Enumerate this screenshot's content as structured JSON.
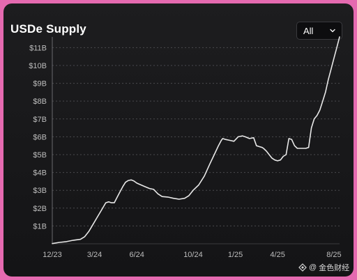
{
  "header": {
    "title": "USDe Supply",
    "range_label": "All"
  },
  "watermark": {
    "text": "金色财经"
  },
  "colors": {
    "line": "#e8e8e8",
    "grid": "#4a4a4e",
    "tick_text": "#bdbdbd",
    "background": "#161618",
    "frame": "#e56ab0"
  },
  "chart_data": {
    "type": "line",
    "title": "USDe Supply",
    "xlabel": "",
    "ylabel": "",
    "x_ticks": [
      "12/23",
      "3/24",
      "6/24",
      "10/24",
      "1/25",
      "4/25",
      "8/25"
    ],
    "x_tick_positions": [
      0,
      3,
      6,
      10,
      13,
      16,
      20
    ],
    "y_ticks": [
      "$1B",
      "$2B",
      "$3B",
      "$4B",
      "$5B",
      "$6B",
      "$7B",
      "$8B",
      "$9B",
      "$10B",
      "$11B"
    ],
    "y_tick_values": [
      1,
      2,
      3,
      4,
      5,
      6,
      7,
      8,
      9,
      10,
      11
    ],
    "ylim": [
      0,
      11.6
    ],
    "x_unit": "months since Dec 2023",
    "y_unit": "USD billions",
    "grid": "horizontal dashed",
    "series": [
      {
        "name": "USDe Supply",
        "x": [
          0,
          0.5,
          1,
          1.5,
          2,
          2.3,
          2.6,
          2.9,
          3.2,
          3.5,
          3.8,
          4,
          4.2,
          4.4,
          4.6,
          4.8,
          5,
          5.2,
          5.4,
          5.6,
          5.8,
          6,
          6.3,
          6.6,
          6.9,
          7.2,
          7.5,
          7.8,
          8.2,
          8.6,
          9,
          9.4,
          9.7,
          10,
          10.4,
          10.8,
          11.2,
          11.5,
          11.8,
          12,
          12.1,
          12.3,
          12.6,
          12.9,
          13.2,
          13.5,
          13.7,
          14,
          14.3,
          14.5,
          14.7,
          14.9,
          15,
          15.2,
          15.4,
          15.6,
          15.8,
          16,
          16.2,
          16.4,
          16.6,
          16.8,
          17,
          17.2,
          17.4,
          17.6,
          17.8,
          18,
          18.2,
          18.4,
          18.6,
          18.8,
          19,
          19.2,
          19.4,
          19.6,
          19.8,
          20,
          20.2,
          20.4
        ],
        "y": [
          0.01,
          0.08,
          0.12,
          0.2,
          0.25,
          0.4,
          0.7,
          1.1,
          1.5,
          1.9,
          2.3,
          2.35,
          2.3,
          2.3,
          2.6,
          2.9,
          3.2,
          3.45,
          3.55,
          3.58,
          3.52,
          3.4,
          3.3,
          3.2,
          3.1,
          3.05,
          2.8,
          2.65,
          2.62,
          2.55,
          2.5,
          2.55,
          2.7,
          3.0,
          3.3,
          3.8,
          4.5,
          5.0,
          5.5,
          5.8,
          5.9,
          5.85,
          5.8,
          5.75,
          6.0,
          6.05,
          6.0,
          5.9,
          5.95,
          5.5,
          5.45,
          5.4,
          5.35,
          5.2,
          5.0,
          4.8,
          4.7,
          4.65,
          4.7,
          4.9,
          5.0,
          5.9,
          5.85,
          5.5,
          5.35,
          5.35,
          5.35,
          5.35,
          5.4,
          6.5,
          7.0,
          7.2,
          7.5,
          8.0,
          8.5,
          9.2,
          9.8,
          10.4,
          11.0,
          11.6
        ]
      }
    ]
  }
}
